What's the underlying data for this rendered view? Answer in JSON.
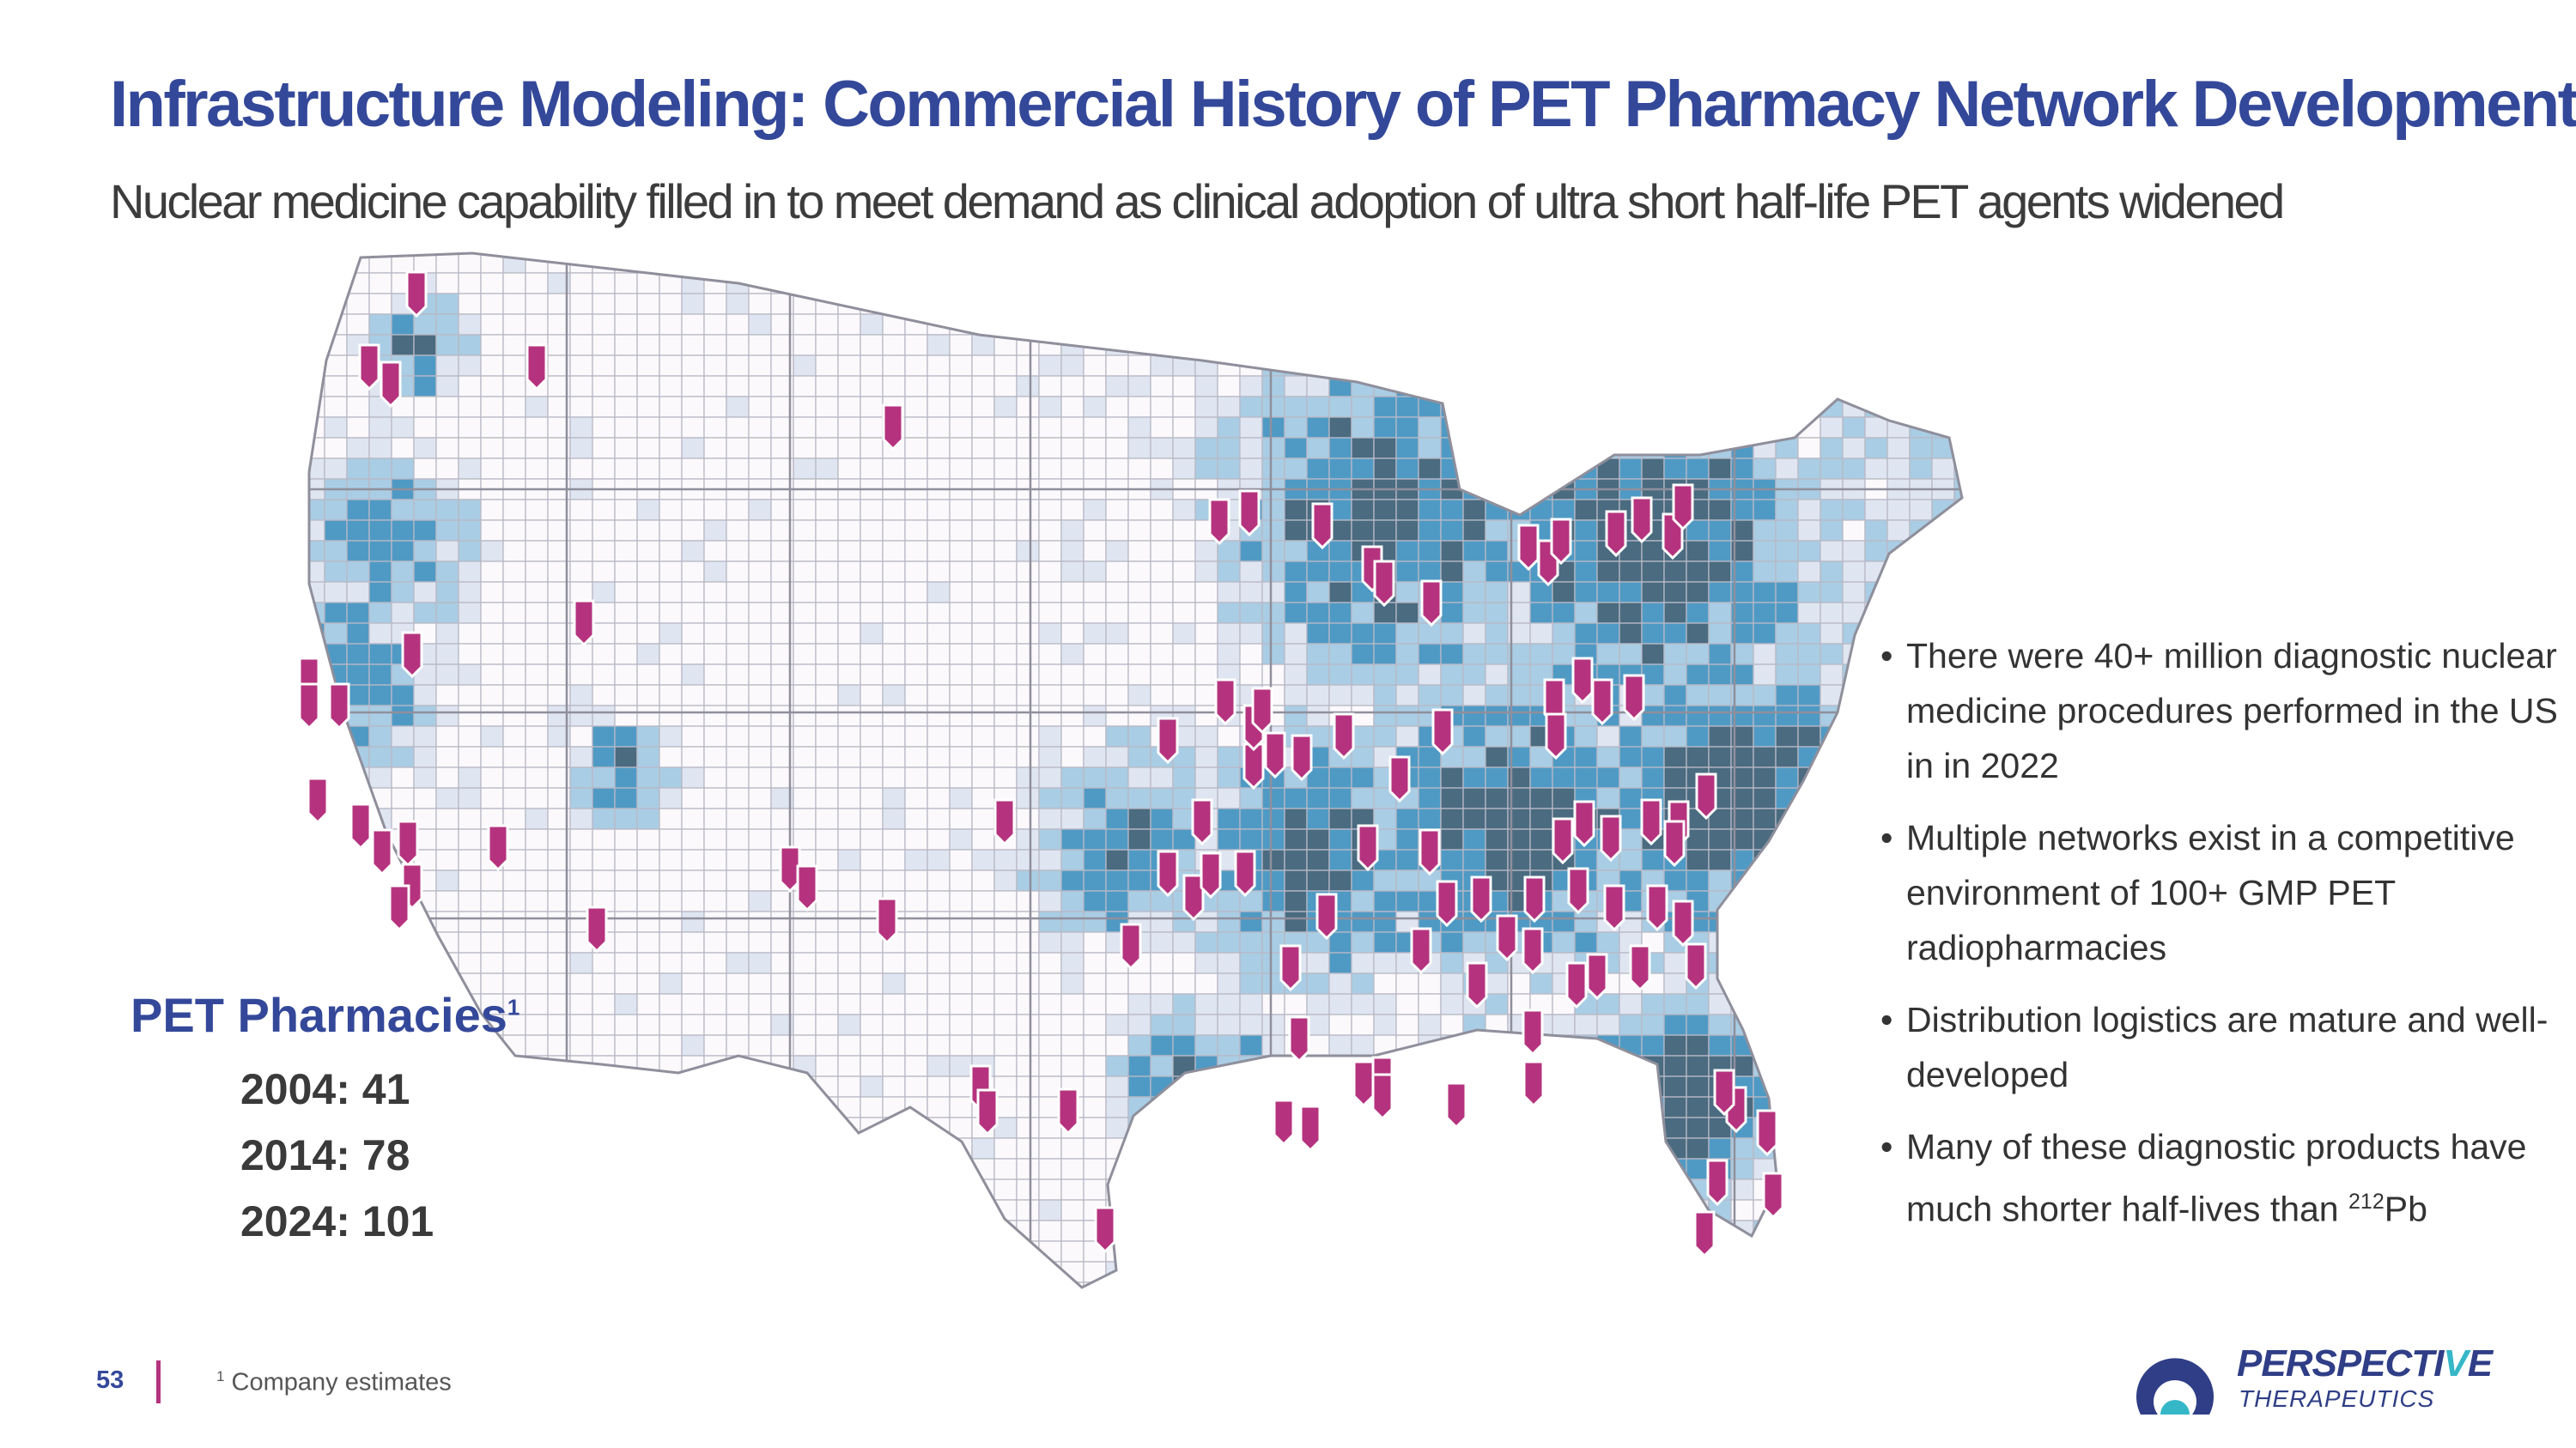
{
  "title": "Infrastructure Modeling: Commercial History of PET Pharmacy Network Development",
  "subtitle": "Nuclear medicine capability filled in to meet demand as clinical adoption of ultra short half-life PET agents widened",
  "legend": {
    "title": "PET Pharmacies",
    "footnote_marker": "1",
    "stats": [
      "2004: 41",
      "2014: 78",
      "2024: 101"
    ]
  },
  "bullets": [
    {
      "text": "There were 40+ million diagnostic nuclear medicine procedures performed in the US in in 2022"
    },
    {
      "text": "Multiple networks exist in a competitive environment of 100+ GMP PET radiopharmacies"
    },
    {
      "text": "Distribution logistics are mature and well-developed"
    },
    {
      "text": "Many of these diagnostic products have much shorter half-lives than ",
      "sup": "212",
      "suffix": "Pb"
    }
  ],
  "footer": {
    "page_number": "53",
    "footnote_marker": "1",
    "footnote": "Company estimates"
  },
  "logo": {
    "name_prefix": "PERSPECTI",
    "name_accent": "V",
    "name_suffix": "E",
    "tagline": "THERAPEUTICS"
  },
  "colors": {
    "title": "#34489a",
    "marker": "#b5337e",
    "density_high": "#4a6b80",
    "density_mid": "#4f9ac4",
    "density_low": "#a9cde4",
    "density_min": "#dfe6f1",
    "density_none": "#fbf9fb",
    "logo_blue": "#2f3e86",
    "logo_cyan": "#35b7c8"
  },
  "map": {
    "marker_icon": "map-pin-icon",
    "marker_count": 101
  }
}
